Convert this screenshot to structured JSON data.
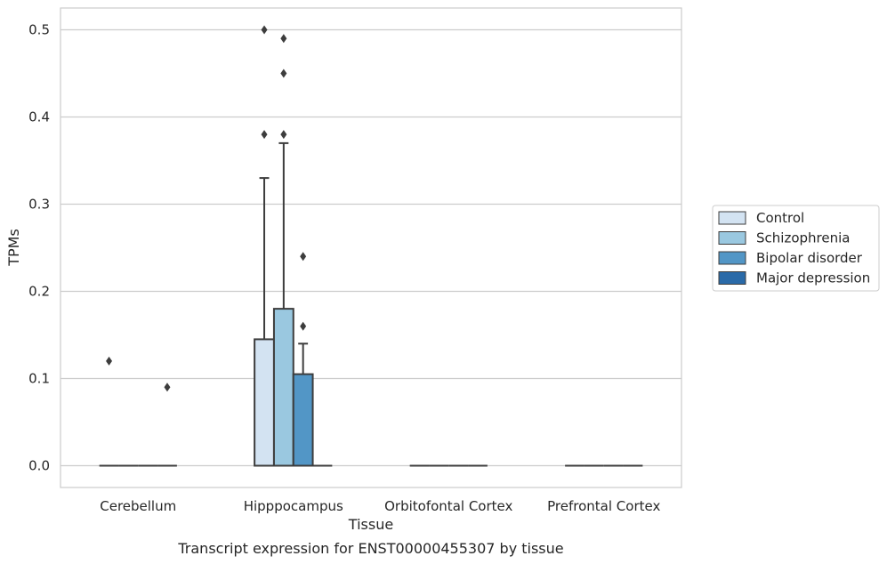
{
  "chart_data": {
    "type": "box",
    "caption": "Transcript expression for ENST00000455307 by tissue",
    "xlabel": "Tissue",
    "ylabel": "TPMs",
    "ylim": [
      -0.025,
      0.525
    ],
    "yticks": [
      0.0,
      0.1,
      0.2,
      0.3,
      0.4,
      0.5
    ],
    "ytick_labels": [
      "0.0",
      "0.1",
      "0.2",
      "0.3",
      "0.4",
      "0.5"
    ],
    "grid": "horizontal",
    "legend_position": "right",
    "categories": [
      "Cerebellum",
      "Hipppocampus",
      "Orbitofontal Cortex",
      "Prefrontal Cortex"
    ],
    "series": [
      {
        "name": "Control",
        "color": "#d3e3f2",
        "boxes": [
          {
            "q1": 0,
            "median": 0,
            "q3": 0,
            "whisker_low": 0,
            "whisker_high": 0,
            "outliers": [
              0.12
            ]
          },
          {
            "q1": 0,
            "median": 0,
            "q3": 0.145,
            "whisker_low": 0,
            "whisker_high": 0.33,
            "outliers": [
              0.38,
              0.5
            ]
          },
          {
            "q1": 0,
            "median": 0,
            "q3": 0,
            "whisker_low": 0,
            "whisker_high": 0,
            "outliers": []
          },
          {
            "q1": 0,
            "median": 0,
            "q3": 0,
            "whisker_low": 0,
            "whisker_high": 0,
            "outliers": []
          }
        ]
      },
      {
        "name": "Schizophrenia",
        "color": "#9ac8e0",
        "boxes": [
          {
            "q1": 0,
            "median": 0,
            "q3": 0,
            "whisker_low": 0,
            "whisker_high": 0,
            "outliers": []
          },
          {
            "q1": 0,
            "median": 0,
            "q3": 0.18,
            "whisker_low": 0,
            "whisker_high": 0.37,
            "outliers": [
              0.38,
              0.45,
              0.49
            ]
          },
          {
            "q1": 0,
            "median": 0,
            "q3": 0,
            "whisker_low": 0,
            "whisker_high": 0,
            "outliers": []
          },
          {
            "q1": 0,
            "median": 0,
            "q3": 0,
            "whisker_low": 0,
            "whisker_high": 0,
            "outliers": []
          }
        ]
      },
      {
        "name": "Bipolar disorder",
        "color": "#5296c6",
        "boxes": [
          {
            "q1": 0,
            "median": 0,
            "q3": 0,
            "whisker_low": 0,
            "whisker_high": 0,
            "outliers": []
          },
          {
            "q1": 0,
            "median": 0,
            "q3": 0.105,
            "whisker_low": 0,
            "whisker_high": 0.14,
            "outliers": [
              0.16,
              0.24
            ]
          },
          {
            "q1": 0,
            "median": 0,
            "q3": 0,
            "whisker_low": 0,
            "whisker_high": 0,
            "outliers": []
          },
          {
            "q1": 0,
            "median": 0,
            "q3": 0,
            "whisker_low": 0,
            "whisker_high": 0,
            "outliers": []
          }
        ]
      },
      {
        "name": "Major depression",
        "color": "#2a6aa8",
        "boxes": [
          {
            "q1": 0,
            "median": 0,
            "q3": 0,
            "whisker_low": 0,
            "whisker_high": 0,
            "outliers": [
              0.09
            ]
          },
          {
            "q1": 0,
            "median": 0,
            "q3": 0,
            "whisker_low": 0,
            "whisker_high": 0,
            "outliers": []
          },
          {
            "q1": 0,
            "median": 0,
            "q3": 0,
            "whisker_low": 0,
            "whisker_high": 0,
            "outliers": []
          },
          {
            "q1": 0,
            "median": 0,
            "q3": 0,
            "whisker_low": 0,
            "whisker_high": 0,
            "outliers": []
          }
        ]
      }
    ]
  }
}
